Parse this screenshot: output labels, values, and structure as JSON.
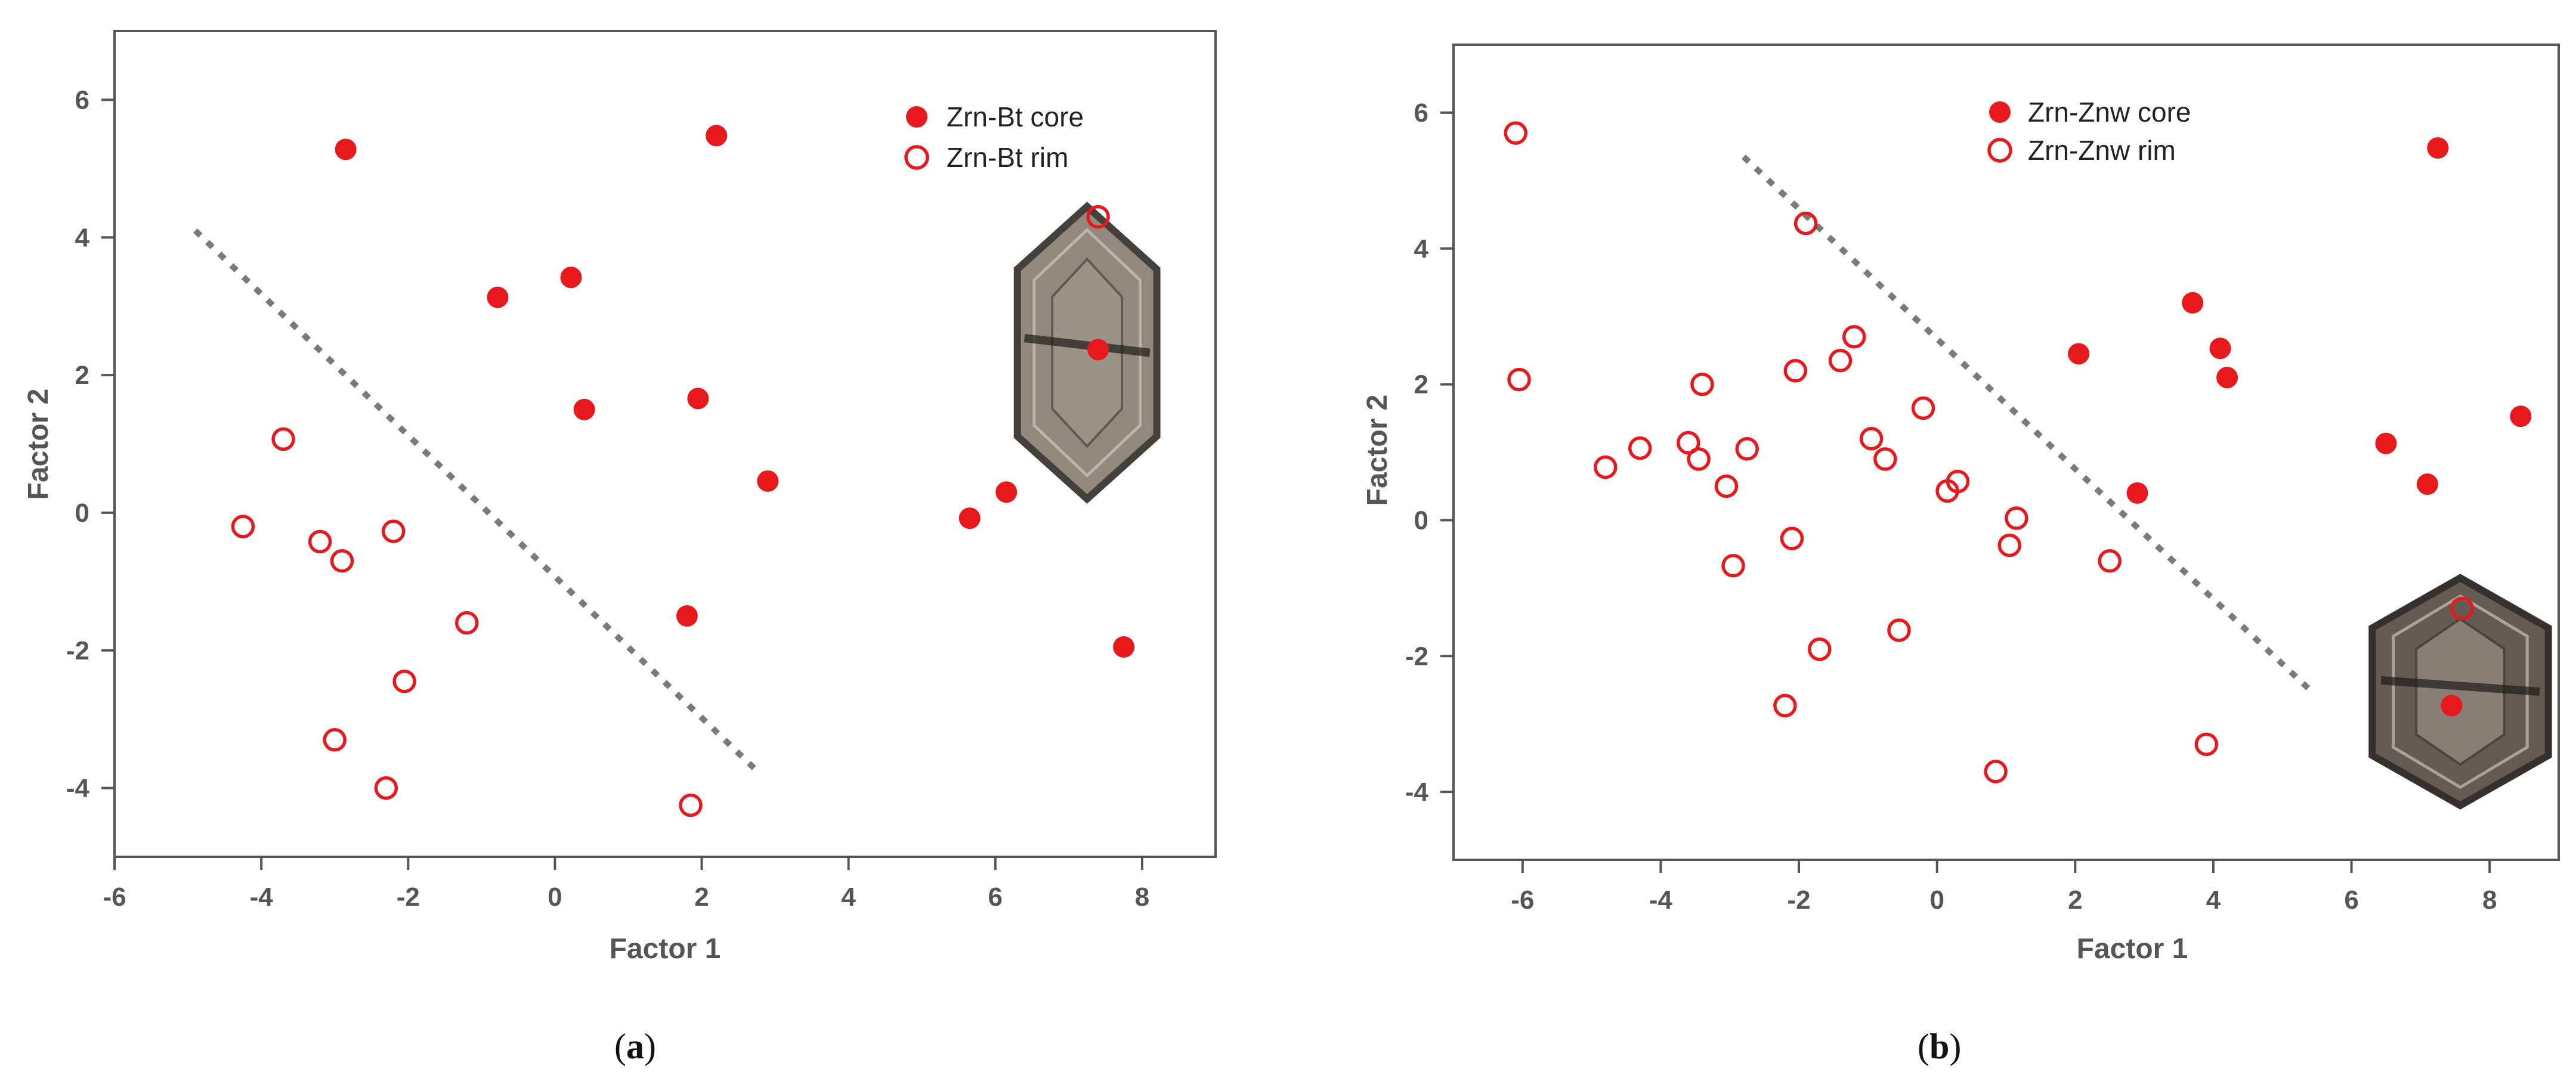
{
  "chart_data": [
    {
      "type": "scatter",
      "caption_open": "(",
      "caption": "a",
      "caption_close": ")",
      "xlabel": "Factor 1",
      "ylabel": "Factor 2",
      "xlim": [
        -6,
        9
      ],
      "ylim": [
        -5,
        7
      ],
      "xticks": [
        -6,
        -4,
        -2,
        0,
        2,
        4,
        6,
        8
      ],
      "yticks": [
        -4,
        -2,
        0,
        2,
        4,
        6
      ],
      "grid": false,
      "legend": "top-right",
      "colors": {
        "marker": "#e8191c",
        "trend": "#7a7a7a"
      },
      "series": [
        {
          "name": "Zrn-Bt core",
          "marker": "filled",
          "points": [
            [
              -2.85,
              5.28
            ],
            [
              2.2,
              5.48
            ],
            [
              0.22,
              3.42
            ],
            [
              -0.78,
              3.13
            ],
            [
              0.4,
              1.5
            ],
            [
              1.95,
              1.66
            ],
            [
              2.9,
              0.46
            ],
            [
              6.15,
              0.3
            ],
            [
              5.65,
              -0.08
            ],
            [
              1.8,
              -1.5
            ],
            [
              7.75,
              -1.95
            ],
            [
              7.4,
              2.37
            ]
          ]
        },
        {
          "name": "Zrn-Bt rim",
          "marker": "open",
          "points": [
            [
              -3.7,
              1.07
            ],
            [
              -4.25,
              -0.2
            ],
            [
              -3.2,
              -0.42
            ],
            [
              -2.9,
              -0.7
            ],
            [
              -2.2,
              -0.27
            ],
            [
              -1.2,
              -1.6
            ],
            [
              -2.05,
              -2.45
            ],
            [
              -3.0,
              -3.3
            ],
            [
              -2.3,
              -4.0
            ],
            [
              1.85,
              -4.25
            ],
            [
              7.4,
              4.3
            ]
          ]
        }
      ],
      "trend_line": {
        "style": "dotted",
        "from": [
          -4.9,
          4.1
        ],
        "to": [
          2.8,
          -3.8
        ]
      },
      "inset": {
        "name": "zircon-crystal-a",
        "x": [
          6.3,
          8.2
        ],
        "y": [
          0.2,
          4.45
        ],
        "fill": "#8c8278",
        "stroke": "#3c3631"
      }
    },
    {
      "type": "scatter",
      "caption_open": "(",
      "caption": "b",
      "caption_close": ")",
      "xlabel": "Factor 1",
      "ylabel": "Factor 2",
      "xlim": [
        -7,
        9
      ],
      "ylim": [
        -5,
        7
      ],
      "xticks": [
        -6,
        -4,
        -2,
        0,
        2,
        4,
        6,
        8
      ],
      "yticks": [
        -4,
        -2,
        0,
        2,
        4,
        6
      ],
      "grid": false,
      "legend": "top-center",
      "colors": {
        "marker": "#e8191c",
        "trend": "#7a7a7a"
      },
      "series": [
        {
          "name": "Zrn-Znw core",
          "marker": "filled",
          "points": [
            [
              7.25,
              5.48
            ],
            [
              3.7,
              3.2
            ],
            [
              4.1,
              2.53
            ],
            [
              4.2,
              2.1
            ],
            [
              2.05,
              2.45
            ],
            [
              2.9,
              0.4
            ],
            [
              6.5,
              1.13
            ],
            [
              7.1,
              0.53
            ],
            [
              8.45,
              1.53
            ],
            [
              7.45,
              -2.73
            ]
          ]
        },
        {
          "name": "Zrn-Znw rim",
          "marker": "open",
          "points": [
            [
              -6.1,
              5.7
            ],
            [
              -6.05,
              2.07
            ],
            [
              -1.9,
              4.37
            ],
            [
              -1.2,
              2.7
            ],
            [
              -1.4,
              2.35
            ],
            [
              -2.05,
              2.2
            ],
            [
              -3.4,
              2.0
            ],
            [
              -4.8,
              0.78
            ],
            [
              -4.3,
              1.06
            ],
            [
              -3.6,
              1.14
            ],
            [
              -3.45,
              0.9
            ],
            [
              -2.75,
              1.05
            ],
            [
              -3.05,
              0.5
            ],
            [
              -0.95,
              1.2
            ],
            [
              -0.75,
              0.9
            ],
            [
              -0.2,
              1.65
            ],
            [
              0.3,
              0.57
            ],
            [
              0.15,
              0.43
            ],
            [
              1.15,
              0.03
            ],
            [
              1.05,
              -0.37
            ],
            [
              -2.1,
              -0.27
            ],
            [
              -2.95,
              -0.67
            ],
            [
              2.5,
              -0.6
            ],
            [
              -1.7,
              -1.9
            ],
            [
              -0.55,
              -1.62
            ],
            [
              -2.2,
              -2.73
            ],
            [
              0.85,
              -3.7
            ],
            [
              3.9,
              -3.3
            ],
            [
              7.6,
              -1.3
            ]
          ]
        }
      ],
      "trend_line": {
        "style": "dotted",
        "from": [
          -2.8,
          5.35
        ],
        "to": [
          5.4,
          -2.5
        ]
      },
      "inset": {
        "name": "zircon-crystal-b",
        "x": [
          6.3,
          8.85
        ],
        "y": [
          -4.2,
          -0.85
        ],
        "fill": "#5c534a",
        "stroke": "#2c2723"
      }
    }
  ]
}
